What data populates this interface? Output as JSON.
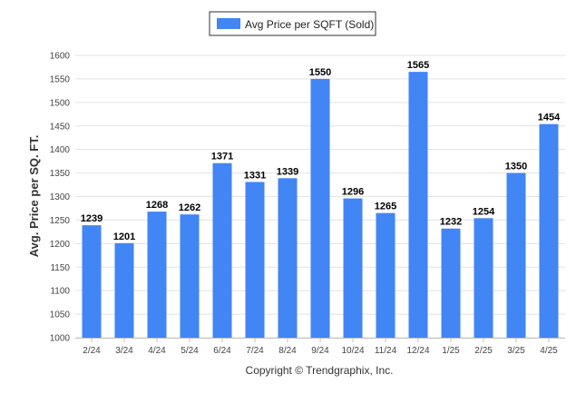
{
  "chart_data": {
    "type": "bar",
    "categories": [
      "2/24",
      "3/24",
      "4/24",
      "5/24",
      "6/24",
      "7/24",
      "8/24",
      "9/24",
      "10/24",
      "11/24",
      "12/24",
      "1/25",
      "2/25",
      "3/25",
      "4/25"
    ],
    "series": [
      {
        "name": "Avg Price per SQFT (Sold)",
        "values": [
          1239,
          1201,
          1268,
          1262,
          1371,
          1331,
          1339,
          1550,
          1296,
          1265,
          1565,
          1232,
          1254,
          1350,
          1454
        ]
      }
    ],
    "ylabel": "Avg. Price per SQ. FT.",
    "ylim": [
      1000,
      1600
    ],
    "yticks": [
      1000,
      1050,
      1100,
      1150,
      1200,
      1250,
      1300,
      1350,
      1400,
      1450,
      1500,
      1550,
      1600
    ],
    "grid": true,
    "legend_position": "top-center",
    "bar_color": "#4285f4",
    "footer": "Copyright © Trendgraphix, Inc."
  }
}
